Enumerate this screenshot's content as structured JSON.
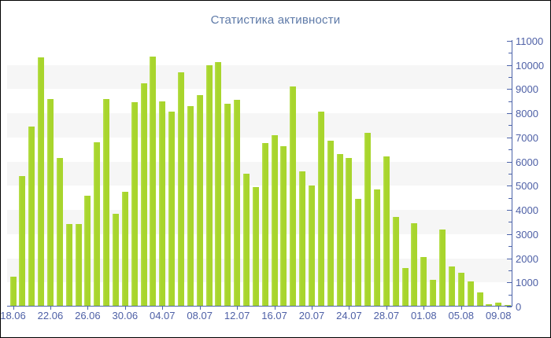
{
  "title": "Статистика активности",
  "colors": {
    "bar": "#a8d52d",
    "bar_edge_light": "#b9e050",
    "stripe_band": "#f6f6f6",
    "axis_line": "#4d64aa",
    "tick_label": "#4e60a6",
    "title_text": "#5e7aa8",
    "background": "#ffffff",
    "frame_border": "#000000"
  },
  "chart_data": {
    "type": "bar",
    "title": "Статистика активности",
    "xlabel": "",
    "ylabel": "",
    "y_axis_position": "right",
    "ylim": [
      0,
      11000
    ],
    "y_major_step": 1000,
    "y_minor_step": 500,
    "grid": "alternating horizontal gray bands on odd thousands (1000-2000, 3000-4000, 5000-6000, 7000-8000, 9000-10000)",
    "legend_position": "none",
    "x_tick_labels": [
      "18.06",
      "22.06",
      "26.06",
      "30.06",
      "04.07",
      "08.07",
      "12.07",
      "16.07",
      "20.07",
      "24.07",
      "28.07",
      "01.08",
      "05.08",
      "09.08"
    ],
    "x_tick_every_n_bars": 4,
    "categories": [
      "18.06",
      "19.06",
      "20.06",
      "21.06",
      "22.06",
      "23.06",
      "24.06",
      "25.06",
      "26.06",
      "27.06",
      "28.06",
      "29.06",
      "30.06",
      "01.07",
      "02.07",
      "03.07",
      "04.07",
      "05.07",
      "06.07",
      "07.07",
      "08.07",
      "09.07",
      "10.07",
      "11.07",
      "12.07",
      "13.07",
      "14.07",
      "15.07",
      "16.07",
      "17.07",
      "18.07",
      "19.07",
      "20.07",
      "21.07",
      "22.07",
      "23.07",
      "24.07",
      "25.07",
      "26.07",
      "27.07",
      "28.07",
      "29.07",
      "30.07",
      "31.07",
      "01.08",
      "02.08",
      "03.08",
      "04.08",
      "05.08",
      "06.08",
      "07.08",
      "08.08",
      "09.08",
      "10.08"
    ],
    "values": [
      1250,
      5400,
      7450,
      10300,
      8600,
      6150,
      3400,
      3400,
      4600,
      6800,
      8600,
      3850,
      4750,
      8450,
      9250,
      10350,
      8500,
      8050,
      9700,
      8300,
      8750,
      10000,
      10100,
      8400,
      8550,
      5500,
      4950,
      6750,
      7100,
      6650,
      9100,
      5600,
      5000,
      8050,
      6850,
      6300,
      6150,
      4450,
      7200,
      4850,
      6200,
      3700,
      1600,
      3450,
      2050,
      1100,
      3200,
      1650,
      1400,
      1050,
      600,
      100,
      150,
      50
    ]
  },
  "y_axis_labels": [
    "0",
    "1000",
    "2000",
    "3000",
    "4000",
    "5000",
    "6000",
    "7000",
    "8000",
    "9000",
    "10000",
    "11000"
  ]
}
